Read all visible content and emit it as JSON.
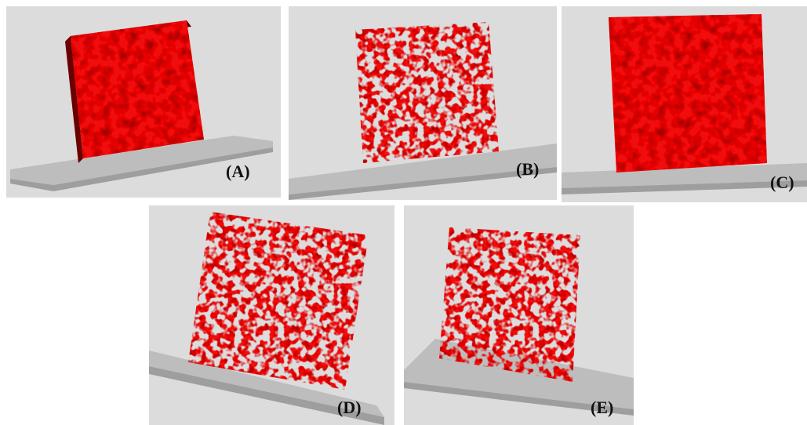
{
  "panels": [
    {
      "label": "(A)"
    },
    {
      "label": "(B)"
    },
    {
      "label": "(C)"
    },
    {
      "label": "(D)"
    },
    {
      "label": "(E)"
    }
  ]
}
